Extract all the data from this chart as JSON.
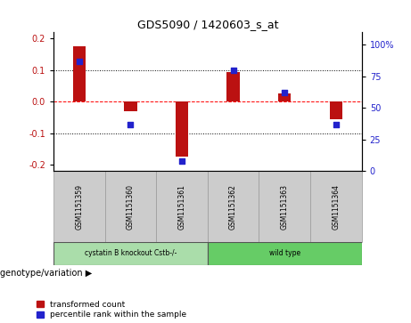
{
  "title": "GDS5090 / 1420603_s_at",
  "samples": [
    "GSM1151359",
    "GSM1151360",
    "GSM1151361",
    "GSM1151362",
    "GSM1151363",
    "GSM1151364"
  ],
  "red_values": [
    0.175,
    -0.03,
    -0.175,
    0.095,
    0.025,
    -0.055
  ],
  "blue_values_pct": [
    87,
    37,
    8,
    80,
    62,
    37
  ],
  "ylim_left": [
    -0.22,
    0.22
  ],
  "ylim_right": [
    0,
    110
  ],
  "yticks_left": [
    -0.2,
    -0.1,
    0.0,
    0.1,
    0.2
  ],
  "yticks_right": [
    0,
    25,
    50,
    75,
    100
  ],
  "ytick_labels_right": [
    "0",
    "25",
    "50",
    "75",
    "100%"
  ],
  "red_color": "#bb1111",
  "blue_color": "#2222cc",
  "bar_width": 0.25,
  "group1_label": "cystatin B knockout Cstb-/-",
  "group2_label": "wild type",
  "group1_color": "#aaddaa",
  "group2_color": "#66cc66",
  "group1_indices": [
    0,
    1,
    2
  ],
  "group2_indices": [
    3,
    4,
    5
  ],
  "legend_red": "transformed count",
  "legend_blue": "percentile rank within the sample",
  "genotype_label": "genotype/variation",
  "sample_cell_color": "#cccccc",
  "cell_edge_color": "#999999"
}
